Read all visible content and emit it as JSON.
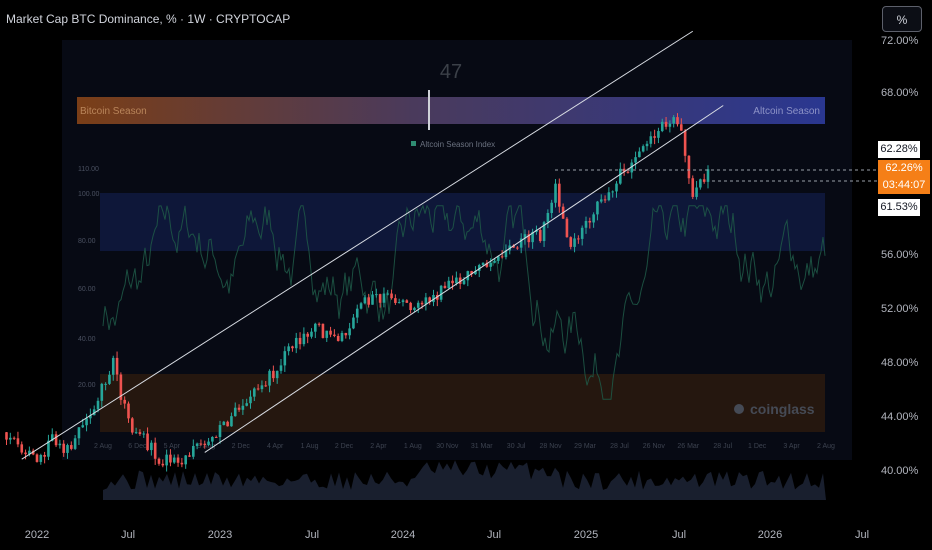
{
  "header": {
    "title": "Market Cap BTC Dominance, % · 1W · CRYPTOCAP",
    "unit_button": "%"
  },
  "overlay": {
    "index_value": "47",
    "bitcoin_season_label": "Bitcoin Season",
    "altcoin_season_label": "Altcoin Season",
    "legend_label": "Altcoin Season Index",
    "watermark": "coinglass",
    "left_axis_ticks": [
      "110.00",
      "100.00",
      "80.00",
      "60.00",
      "40.00",
      "20.00"
    ],
    "bottom_date_ticks": [
      "2 Aug",
      "6 Dec",
      "5 Apr",
      "3 Aug",
      "2 Dec",
      "4 Apr",
      "1 Aug",
      "2 Dec",
      "2 Apr",
      "1 Aug",
      "30 Nov",
      "31 Mar",
      "30 Jul",
      "28 Nov",
      "29 Mar",
      "28 Jul",
      "26 Nov",
      "26 Mar",
      "28 Jul",
      "1 Dec",
      "3 Apr",
      "2 Aug"
    ]
  },
  "price_labels": {
    "upper": "62.28%",
    "current": "62.26%",
    "countdown": "03:44:07",
    "lower": "61.53%"
  },
  "chart_data": {
    "type": "candlestick",
    "title": "Market Cap BTC Dominance, % · 1W · CRYPTOCAP",
    "y_axis": {
      "labels": [
        "72.00%",
        "68.00%",
        "62.28%",
        "56.00%",
        "52.00%",
        "48.00%",
        "44.00%",
        "40.00%"
      ],
      "range": [
        40,
        72
      ],
      "unit": "%"
    },
    "x_axis": {
      "labels": [
        "2022",
        "Jul",
        "2023",
        "Jul",
        "2024",
        "Jul",
        "2025",
        "Jul",
        "2026",
        "Jul"
      ]
    },
    "price_path": [
      {
        "date": "2021-11",
        "value": 42.8
      },
      {
        "date": "2022-01",
        "value": 40.3
      },
      {
        "date": "2022-02",
        "value": 42.5
      },
      {
        "date": "2022-03",
        "value": 41.3
      },
      {
        "date": "2022-05",
        "value": 45.2
      },
      {
        "date": "2022-06",
        "value": 47.8
      },
      {
        "date": "2022-07",
        "value": 43.5
      },
      {
        "date": "2022-09",
        "value": 41.0
      },
      {
        "date": "2022-10",
        "value": 40.5
      },
      {
        "date": "2022-12",
        "value": 41.8
      },
      {
        "date": "2023-01",
        "value": 43.0
      },
      {
        "date": "2023-02",
        "value": 44.5
      },
      {
        "date": "2023-04",
        "value": 46.5
      },
      {
        "date": "2023-06",
        "value": 49.5
      },
      {
        "date": "2023-07",
        "value": 50.5
      },
      {
        "date": "2023-09",
        "value": 50.0
      },
      {
        "date": "2023-11",
        "value": 53.0
      },
      {
        "date": "2024-01",
        "value": 52.2
      },
      {
        "date": "2024-03",
        "value": 52.8
      },
      {
        "date": "2024-05",
        "value": 54.5
      },
      {
        "date": "2024-07",
        "value": 55.0
      },
      {
        "date": "2024-08",
        "value": 56.5
      },
      {
        "date": "2024-10",
        "value": 57.5
      },
      {
        "date": "2024-11",
        "value": 61.0
      },
      {
        "date": "2024-12",
        "value": 56.5
      },
      {
        "date": "2025-01",
        "value": 58.5
      },
      {
        "date": "2025-03",
        "value": 61.5
      },
      {
        "date": "2025-05",
        "value": 64.0
      },
      {
        "date": "2025-06",
        "value": 65.5
      },
      {
        "date": "2025-07",
        "value": 66.0
      },
      {
        "date": "2025-08",
        "value": 60.5
      },
      {
        "date": "2025-09",
        "value": 62.26
      }
    ],
    "channel_upper": [
      {
        "date": "2021-12",
        "value": 40.8
      },
      {
        "date": "2025-08",
        "value": 72.5
      }
    ],
    "channel_lower": [
      {
        "date": "2022-12",
        "value": 41.3
      },
      {
        "date": "2025-10",
        "value": 67.0
      }
    ]
  }
}
